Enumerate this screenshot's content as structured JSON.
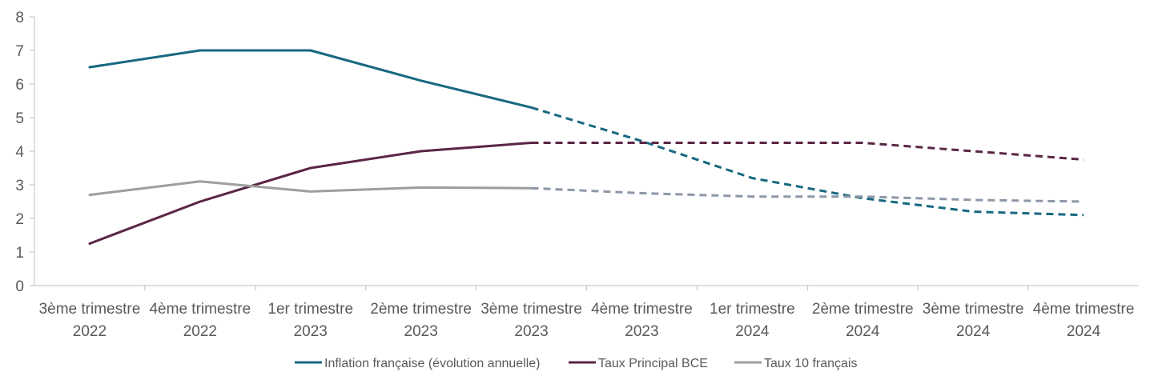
{
  "chart_data": {
    "type": "line",
    "title": "",
    "xlabel": "",
    "ylabel": "",
    "ylim": [
      0,
      8
    ],
    "yticks": [
      0,
      1,
      2,
      3,
      4,
      5,
      6,
      7,
      8
    ],
    "grid": false,
    "legend_position": "bottom",
    "categories": [
      [
        "3ème trimestre",
        "2022"
      ],
      [
        "4ème trimestre",
        "2022"
      ],
      [
        "1er trimestre",
        "2023"
      ],
      [
        "2ème trimestre",
        "2023"
      ],
      [
        "3ème trimestre",
        "2023"
      ],
      [
        "4ème trimestre",
        "2023"
      ],
      [
        "1er trimestre",
        "2024"
      ],
      [
        "2ème trimestre",
        "2024"
      ],
      [
        "3ème trimestre",
        "2024"
      ],
      [
        "4ème trimestre",
        "2024"
      ]
    ],
    "forecast_from_index": 4,
    "series": [
      {
        "name": "Inflation française (évolution annuelle)",
        "color": "#17687F",
        "values": [
          6.5,
          7.0,
          7.0,
          6.1,
          5.3,
          4.3,
          3.2,
          2.6,
          2.2,
          2.1
        ]
      },
      {
        "name": "Taux Principal BCE",
        "color": "#5B2546",
        "values": [
          1.25,
          2.5,
          3.5,
          4.0,
          4.25,
          4.25,
          4.25,
          4.25,
          4.0,
          3.75
        ]
      },
      {
        "name": "Taux 10 français",
        "color": "#9E9E9E",
        "forecast_color": "#8C97A8",
        "values": [
          2.7,
          3.1,
          2.8,
          2.92,
          2.9,
          2.75,
          2.65,
          2.65,
          2.55,
          2.5
        ]
      }
    ]
  }
}
